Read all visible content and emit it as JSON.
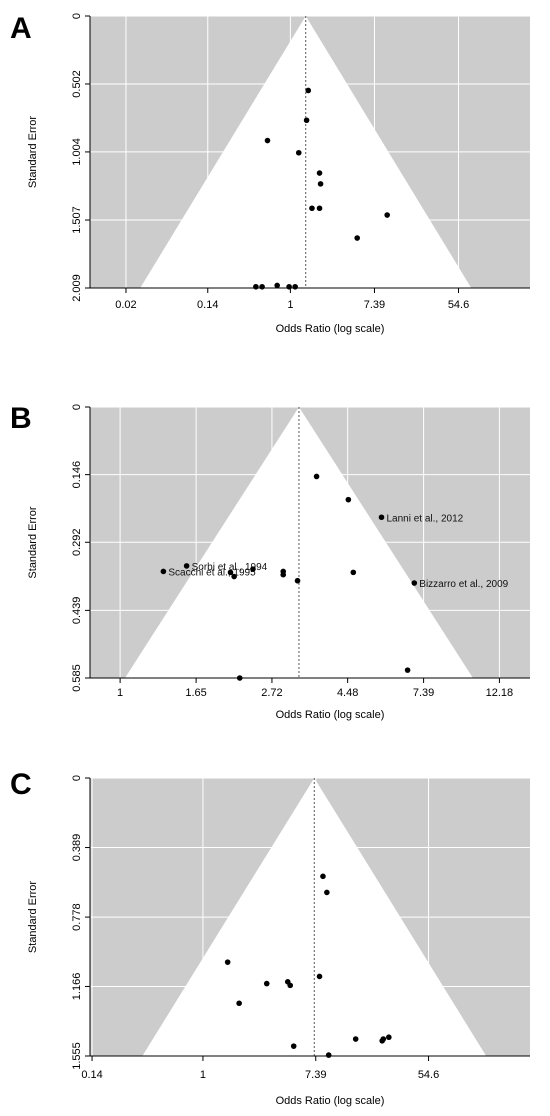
{
  "chart_data": [
    {
      "type": "scatter",
      "panel_label": "A",
      "title": "",
      "xlabel": "Odds Ratio (log scale)",
      "ylabel": "Standard Error",
      "x_scale": "log",
      "y_inverted": true,
      "grid": true,
      "x_ticks": [
        {
          "value": 0.02,
          "label": "0.02"
        },
        {
          "value": 0.14,
          "label": "0.14"
        },
        {
          "value": 1,
          "label": "1"
        },
        {
          "value": 7.39,
          "label": "7.39"
        },
        {
          "value": 54.6,
          "label": "54.6"
        }
      ],
      "y_ticks": [
        {
          "value": 0,
          "label": "0"
        },
        {
          "value": 0.502,
          "label": "0.502"
        },
        {
          "value": 1.004,
          "label": "1.004"
        },
        {
          "value": 1.507,
          "label": "1.507"
        },
        {
          "value": 2.009,
          "label": "2.009"
        }
      ],
      "xlim": [
        0.0085,
        299
      ],
      "ylim": [
        0,
        2.009
      ],
      "center": 1.44,
      "points": [
        {
          "x": 1.53,
          "y": 0.55,
          "label": ""
        },
        {
          "x": 1.47,
          "y": 0.77,
          "label": ""
        },
        {
          "x": 0.58,
          "y": 0.92,
          "label": ""
        },
        {
          "x": 1.22,
          "y": 1.01,
          "label": ""
        },
        {
          "x": 2.0,
          "y": 1.16,
          "label": ""
        },
        {
          "x": 2.05,
          "y": 1.24,
          "label": ""
        },
        {
          "x": 1.67,
          "y": 1.42,
          "label": ""
        },
        {
          "x": 2.0,
          "y": 1.42,
          "label": ""
        },
        {
          "x": 10.0,
          "y": 1.47,
          "label": ""
        },
        {
          "x": 4.9,
          "y": 1.64,
          "label": ""
        },
        {
          "x": 0.44,
          "y": 2.0,
          "label": ""
        },
        {
          "x": 0.51,
          "y": 2.0,
          "label": ""
        },
        {
          "x": 0.73,
          "y": 1.99,
          "label": ""
        },
        {
          "x": 0.97,
          "y": 2.0,
          "label": ""
        },
        {
          "x": 1.12,
          "y": 2.0,
          "label": ""
        }
      ]
    },
    {
      "type": "scatter",
      "panel_label": "B",
      "title": "",
      "xlabel": "Odds Ratio (log scale)",
      "ylabel": "Standard Error",
      "x_scale": "log",
      "y_inverted": true,
      "grid": true,
      "x_ticks": [
        {
          "value": 1,
          "label": "1"
        },
        {
          "value": 1.65,
          "label": "1.65"
        },
        {
          "value": 2.72,
          "label": "2.72"
        },
        {
          "value": 4.48,
          "label": "4.48"
        },
        {
          "value": 7.39,
          "label": "7.39"
        },
        {
          "value": 12.18,
          "label": "12.18"
        }
      ],
      "y_ticks": [
        {
          "value": 0,
          "label": "0"
        },
        {
          "value": 0.146,
          "label": "0.146"
        },
        {
          "value": 0.292,
          "label": "0.292"
        },
        {
          "value": 0.439,
          "label": "0.439"
        },
        {
          "value": 0.585,
          "label": "0.585"
        }
      ],
      "xlim": [
        0.82,
        14.9
      ],
      "ylim": [
        0,
        0.585
      ],
      "center": 3.25,
      "points": [
        {
          "x": 3.65,
          "y": 0.15,
          "label": ""
        },
        {
          "x": 4.5,
          "y": 0.2,
          "label": ""
        },
        {
          "x": 5.6,
          "y": 0.238,
          "label": "Lanni et  al., 2012"
        },
        {
          "x": 1.55,
          "y": 0.343,
          "label": "Sorbi et al., 1994"
        },
        {
          "x": 1.33,
          "y": 0.355,
          "label": "Scacchi  et al., 1995"
        },
        {
          "x": 2.4,
          "y": 0.35,
          "label": ""
        },
        {
          "x": 2.07,
          "y": 0.357,
          "label": ""
        },
        {
          "x": 2.12,
          "y": 0.366,
          "label": ""
        },
        {
          "x": 2.93,
          "y": 0.355,
          "label": ""
        },
        {
          "x": 2.93,
          "y": 0.362,
          "label": ""
        },
        {
          "x": 3.22,
          "y": 0.375,
          "label": ""
        },
        {
          "x": 4.65,
          "y": 0.357,
          "label": ""
        },
        {
          "x": 6.95,
          "y": 0.38,
          "label": "Bizzarro et al., 2009"
        },
        {
          "x": 2.2,
          "y": 0.585,
          "label": ""
        },
        {
          "x": 6.65,
          "y": 0.568,
          "label": ""
        }
      ]
    },
    {
      "type": "scatter",
      "panel_label": "C",
      "title": "",
      "xlabel": "Odds Ratio (log scale)",
      "ylabel": "Standard Error",
      "x_scale": "log",
      "y_inverted": true,
      "grid": true,
      "x_ticks": [
        {
          "value": 0.14,
          "label": "0.14"
        },
        {
          "value": 1,
          "label": "1"
        },
        {
          "value": 7.39,
          "label": "7.39"
        },
        {
          "value": 54.6,
          "label": "54.6"
        }
      ],
      "y_ticks": [
        {
          "value": 0,
          "label": "0"
        },
        {
          "value": 0.389,
          "label": "0.389"
        },
        {
          "value": 0.778,
          "label": "0.778"
        },
        {
          "value": 1.166,
          "label": "1.166"
        },
        {
          "value": 1.555,
          "label": "1.555"
        }
      ],
      "xlim": [
        0.135,
        330
      ],
      "ylim": [
        0,
        1.555
      ],
      "center": 7.2,
      "points": [
        {
          "x": 8.4,
          "y": 0.55,
          "label": ""
        },
        {
          "x": 9.0,
          "y": 0.64,
          "label": ""
        },
        {
          "x": 1.55,
          "y": 1.03,
          "label": ""
        },
        {
          "x": 1.9,
          "y": 1.26,
          "label": ""
        },
        {
          "x": 3.1,
          "y": 1.15,
          "label": ""
        },
        {
          "x": 4.5,
          "y": 1.14,
          "label": ""
        },
        {
          "x": 4.7,
          "y": 1.16,
          "label": ""
        },
        {
          "x": 7.9,
          "y": 1.11,
          "label": ""
        },
        {
          "x": 5.0,
          "y": 1.5,
          "label": ""
        },
        {
          "x": 9.3,
          "y": 1.55,
          "label": ""
        },
        {
          "x": 15.0,
          "y": 1.46,
          "label": ""
        },
        {
          "x": 24.0,
          "y": 1.47,
          "label": ""
        },
        {
          "x": 24.5,
          "y": 1.46,
          "label": ""
        },
        {
          "x": 27.0,
          "y": 1.45,
          "label": ""
        }
      ]
    }
  ]
}
